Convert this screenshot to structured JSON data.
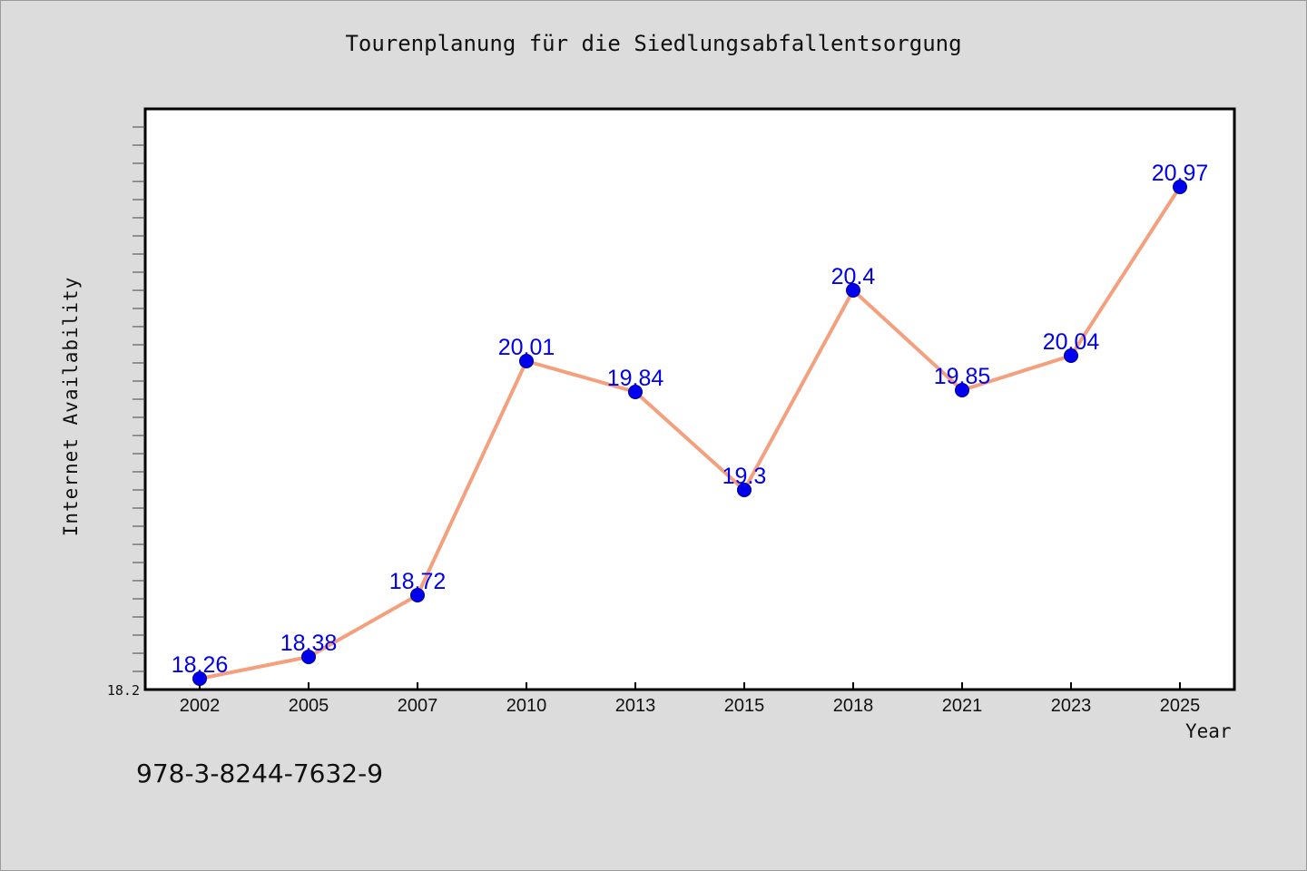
{
  "chart_data": {
    "type": "line",
    "title": "Tourenplanung für die Siedlungsabfallentsorgung",
    "xlabel": "Year",
    "ylabel": "Internet Availability",
    "categories": [
      "2002",
      "2005",
      "2007",
      "2010",
      "2013",
      "2015",
      "2018",
      "2021",
      "2023",
      "2025"
    ],
    "values": [
      18.26,
      18.38,
      18.72,
      20.01,
      19.84,
      19.3,
      20.4,
      19.85,
      20.04,
      20.97
    ],
    "value_labels": [
      "18.26",
      "18.38",
      "18.72",
      "20.01",
      "19.84",
      "19.3",
      "20.4",
      "19.85",
      "20.04",
      "20.97"
    ],
    "ylim": [
      18.2,
      21.4
    ],
    "y_tick_labels": [
      "18.2"
    ],
    "grid": false,
    "line_color": "#f4a07e",
    "marker_color": "#0000ee",
    "label_color": "#0000ee",
    "plot_background": "#ffffff"
  },
  "footer": {
    "isbn": "978-3-8244-7632-9"
  }
}
